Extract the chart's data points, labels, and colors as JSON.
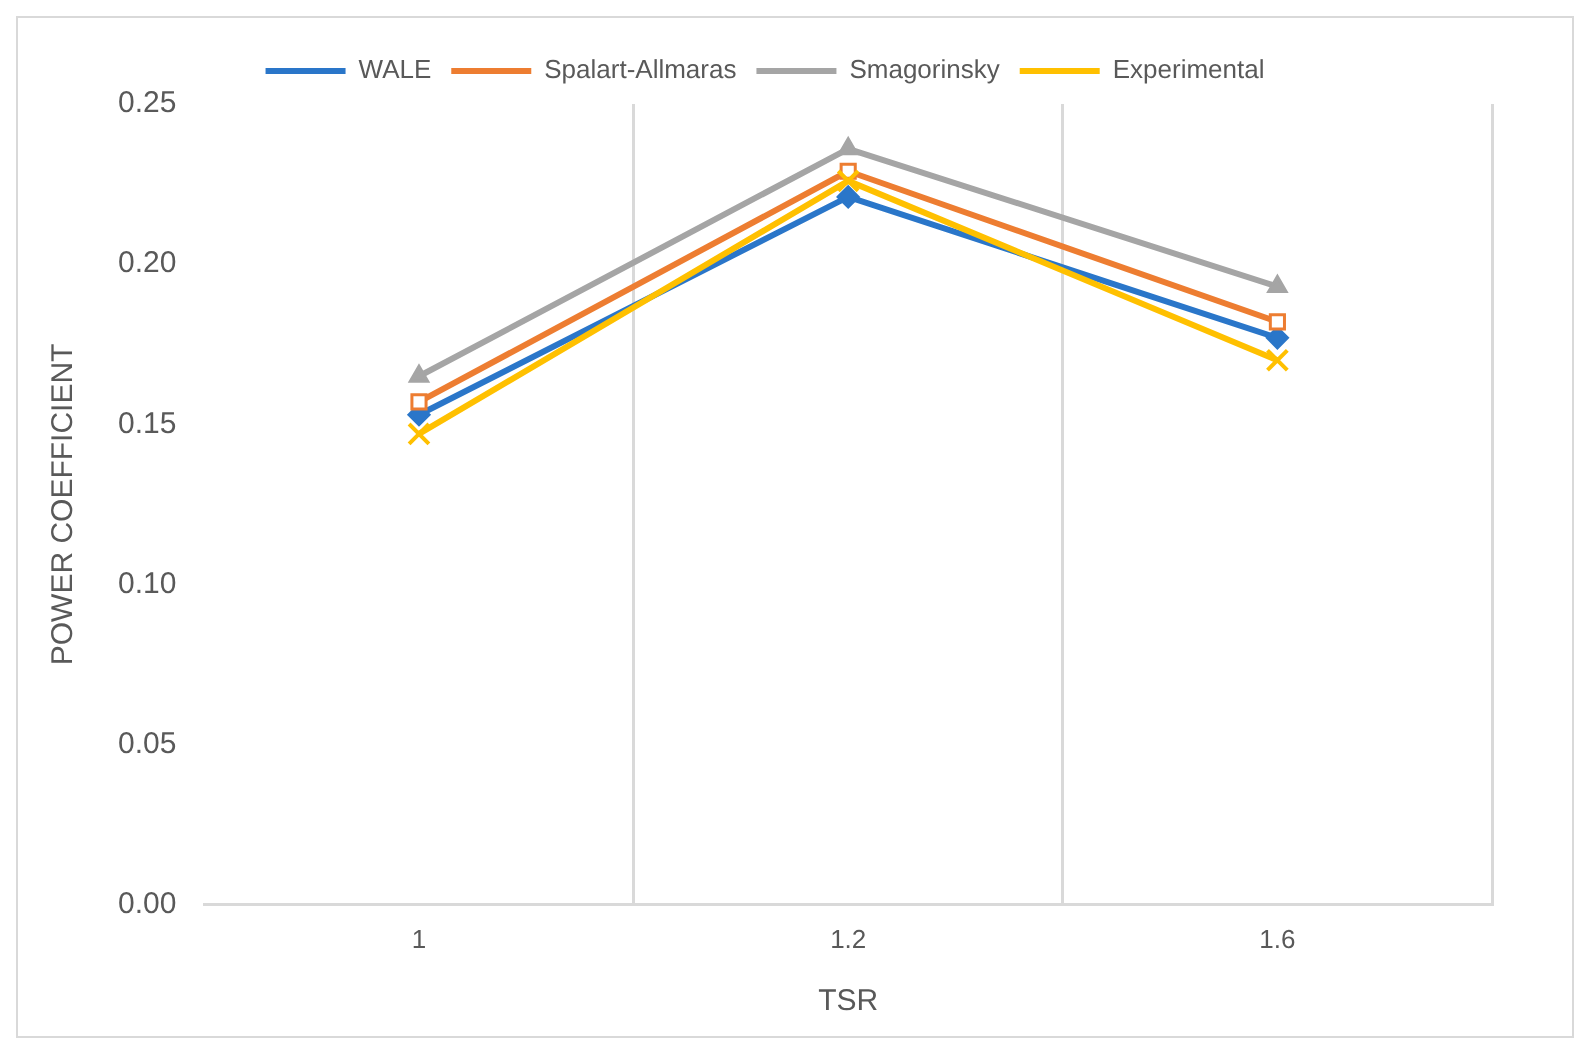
{
  "chart_data": {
    "type": "line",
    "xlabel": "TSR",
    "ylabel": "POWER COEFFICIENT",
    "categories": [
      "1",
      "1.2",
      "1.6"
    ],
    "series": [
      {
        "name": "WALE",
        "color": "#2a76c9",
        "marker": "diamond",
        "values": [
          0.153,
          0.221,
          0.177
        ]
      },
      {
        "name": "Spalart-Allmaras",
        "color": "#ed7d31",
        "marker": "square",
        "values": [
          0.157,
          0.229,
          0.182
        ]
      },
      {
        "name": "Smagorinsky",
        "color": "#a5a5a5",
        "marker": "triangle",
        "values": [
          0.165,
          0.236,
          0.193
        ]
      },
      {
        "name": "Experimental",
        "color": "#ffc000",
        "marker": "cross",
        "values": [
          0.147,
          0.226,
          0.17
        ]
      }
    ],
    "ylim": [
      0,
      0.25
    ],
    "yticks": [
      {
        "value": 0,
        "label": "0.00"
      },
      {
        "value": 0.05,
        "label": "0.05"
      },
      {
        "value": 0.1,
        "label": "0.10"
      },
      {
        "value": 0.15,
        "label": "0.15"
      },
      {
        "value": 0.2,
        "label": "0.20"
      },
      {
        "value": 0.25,
        "label": "0.25"
      }
    ],
    "grid": "x",
    "legend": "top",
    "line_style": "solid"
  }
}
